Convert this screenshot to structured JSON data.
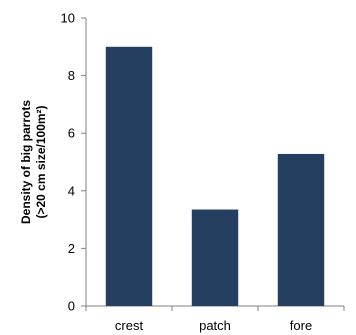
{
  "chart_data": {
    "type": "bar",
    "categories": [
      "crest",
      "patch",
      "fore"
    ],
    "values": [
      9.0,
      3.35,
      5.28
    ],
    "ylabel_lines": [
      "Density of big parrots",
      "(>20 cm size/100m²)"
    ],
    "ylim": [
      0,
      10
    ],
    "yticks": [
      0,
      2,
      4,
      6,
      8,
      10
    ],
    "bar_color": "#243f60",
    "grid": false,
    "legend": "none"
  }
}
